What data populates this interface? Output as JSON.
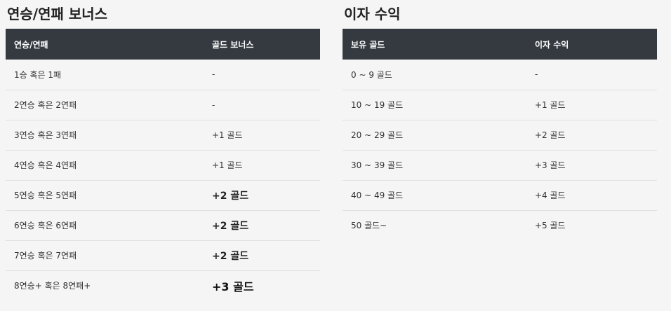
{
  "streak": {
    "title": "연승/연패 보너스",
    "headers": [
      "연승/연패",
      "골드 보너스"
    ],
    "rows": [
      [
        "1승 혹은 1패",
        "-"
      ],
      [
        "2연승 혹은 2연패",
        "-"
      ],
      [
        "3연승 혹은 3연패",
        "+1 골드"
      ],
      [
        "4연승 혹은 4연패",
        "+1 골드"
      ],
      [
        "5연승 혹은 5연패",
        "+2 골드"
      ],
      [
        "6연승 혹은 6연패",
        "+2 골드"
      ],
      [
        "7연승 혹은 7연패",
        "+2 골드"
      ],
      [
        "8연승+ 혹은 8연패+",
        "+3 골드"
      ]
    ]
  },
  "interest": {
    "title": "이자 수익",
    "headers": [
      "보유 골드",
      "이자 수익"
    ],
    "rows": [
      [
        "0 ~ 9 골드",
        "-"
      ],
      [
        "10 ~ 19 골드",
        "+1 골드"
      ],
      [
        "20 ~ 29 골드",
        "+2 골드"
      ],
      [
        "30 ~ 39 골드",
        "+3 골드"
      ],
      [
        "40 ~ 49 골드",
        "+4 골드"
      ],
      [
        "50 골드~",
        "+5 골드"
      ]
    ]
  }
}
